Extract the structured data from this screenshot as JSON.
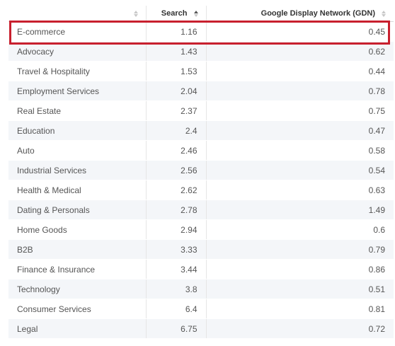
{
  "table": {
    "headers": [
      {
        "label": ""
      },
      {
        "label": "Search"
      },
      {
        "label": "Google Display Network (GDN)"
      }
    ],
    "rows": [
      {
        "industry": "E-commerce",
        "search": "1.16",
        "gdn": "0.45"
      },
      {
        "industry": "Advocacy",
        "search": "1.43",
        "gdn": "0.62"
      },
      {
        "industry": "Travel & Hospitality",
        "search": "1.53",
        "gdn": "0.44"
      },
      {
        "industry": "Employment Services",
        "search": "2.04",
        "gdn": "0.78"
      },
      {
        "industry": "Real Estate",
        "search": "2.37",
        "gdn": "0.75"
      },
      {
        "industry": "Education",
        "search": "2.4",
        "gdn": "0.47"
      },
      {
        "industry": "Auto",
        "search": "2.46",
        "gdn": "0.58"
      },
      {
        "industry": "Industrial Services",
        "search": "2.56",
        "gdn": "0.54"
      },
      {
        "industry": "Health & Medical",
        "search": "2.62",
        "gdn": "0.63"
      },
      {
        "industry": "Dating & Personals",
        "search": "2.78",
        "gdn": "1.49"
      },
      {
        "industry": "Home Goods",
        "search": "2.94",
        "gdn": "0.6"
      },
      {
        "industry": "B2B",
        "search": "3.33",
        "gdn": "0.79"
      },
      {
        "industry": "Finance & Insurance",
        "search": "3.44",
        "gdn": "0.86"
      },
      {
        "industry": "Technology",
        "search": "3.8",
        "gdn": "0.51"
      },
      {
        "industry": "Consumer Services",
        "search": "6.4",
        "gdn": "0.81"
      },
      {
        "industry": "Legal",
        "search": "6.75",
        "gdn": "0.72"
      }
    ]
  },
  "colors": {
    "highlight": "#c8202e",
    "stripe": "#f4f6f9"
  },
  "icons": {
    "sort": "sort-icon",
    "sort_active": "sort-ascending-icon"
  }
}
